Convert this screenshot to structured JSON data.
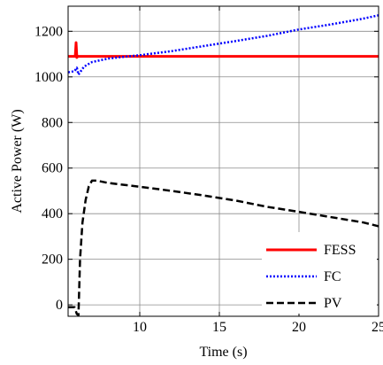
{
  "chart_data": {
    "type": "line",
    "title": "",
    "xlabel": "Time (s)",
    "ylabel": "Active Power (W)",
    "xlim": [
      5.5,
      25
    ],
    "ylim": [
      -50,
      1310
    ],
    "x_ticks": [
      10,
      15,
      20,
      25
    ],
    "x_tick_labels": [
      "10",
      "15",
      "20",
      "25"
    ],
    "y_ticks": [
      0,
      200,
      400,
      600,
      800,
      1000,
      1200
    ],
    "y_tick_labels": [
      "0",
      "200",
      "400",
      "600",
      "800",
      "1000",
      "1200"
    ],
    "grid": true,
    "legend_position": "bottom-right",
    "series": [
      {
        "name": "FESS",
        "color": "#ff0000",
        "style": "solid",
        "points": [
          [
            5.5,
            1090
          ],
          [
            5.95,
            1090
          ],
          [
            6.0,
            1150
          ],
          [
            6.05,
            1085
          ],
          [
            6.1,
            1090
          ],
          [
            25,
            1090
          ]
        ]
      },
      {
        "name": "FC",
        "color": "#0000ff",
        "style": "dotted",
        "points": [
          [
            5.5,
            1020
          ],
          [
            5.9,
            1025
          ],
          [
            6.05,
            1040
          ],
          [
            6.15,
            1010
          ],
          [
            6.5,
            1045
          ],
          [
            7,
            1065
          ],
          [
            8,
            1080
          ],
          [
            9,
            1088
          ],
          [
            10,
            1095
          ],
          [
            12,
            1113
          ],
          [
            14,
            1135
          ],
          [
            16,
            1157
          ],
          [
            18,
            1180
          ],
          [
            20,
            1208
          ],
          [
            22,
            1230
          ],
          [
            24,
            1255
          ],
          [
            25,
            1270
          ]
        ]
      },
      {
        "name": "PV",
        "color": "#000000",
        "style": "dashed",
        "points": [
          [
            5.5,
            -10
          ],
          [
            5.9,
            -10
          ],
          [
            6.05,
            -40
          ],
          [
            6.15,
            -45
          ],
          [
            6.25,
            200
          ],
          [
            6.4,
            360
          ],
          [
            6.6,
            460
          ],
          [
            6.8,
            520
          ],
          [
            7.0,
            545
          ],
          [
            7.3,
            545
          ],
          [
            8,
            535
          ],
          [
            10,
            518
          ],
          [
            12,
            500
          ],
          [
            14,
            480
          ],
          [
            16,
            458
          ],
          [
            18,
            430
          ],
          [
            20,
            408
          ],
          [
            22,
            385
          ],
          [
            24,
            362
          ],
          [
            25,
            345
          ]
        ]
      }
    ]
  }
}
